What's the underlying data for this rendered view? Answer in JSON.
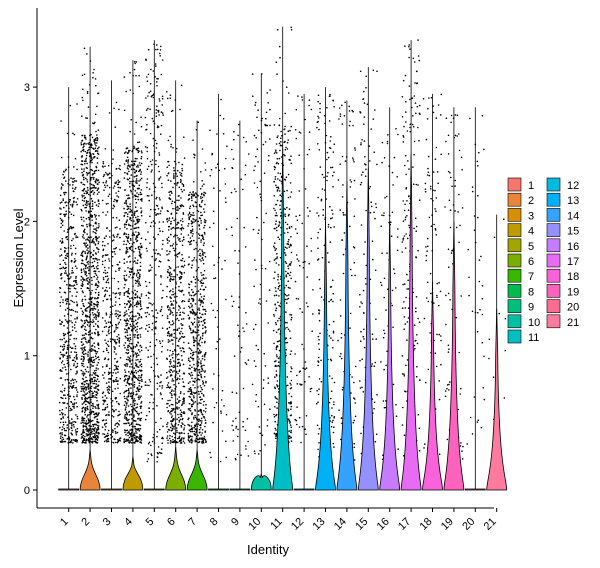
{
  "chart_data": {
    "type": "violin",
    "xlabel": "Identity",
    "ylabel": "Expression Level",
    "ylim": [
      -0.2,
      3.5
    ],
    "yticks": [
      0,
      1,
      2,
      3
    ],
    "categories": [
      "1",
      "2",
      "3",
      "4",
      "5",
      "6",
      "7",
      "8",
      "9",
      "10",
      "11",
      "12",
      "13",
      "14",
      "15",
      "16",
      "17",
      "18",
      "19",
      "20",
      "21"
    ],
    "colors": [
      "#F8766D",
      "#E8853A",
      "#D89000",
      "#C09B00",
      "#A3A500",
      "#7CAE00",
      "#39B600",
      "#00BB4E",
      "#00BF7D",
      "#00C1A3",
      "#00BFC4",
      "#00BAE0",
      "#00B0F6",
      "#35A2FF",
      "#9590FF",
      "#C77CFF",
      "#E76BF3",
      "#FA62DB",
      "#FF62BC",
      "#FF6C91",
      "#FF7A9D"
    ],
    "max_expression": [
      3.0,
      3.3,
      3.05,
      3.2,
      3.35,
      3.05,
      2.75,
      2.95,
      2.75,
      3.1,
      3.45,
      2.95,
      3.0,
      2.9,
      3.15,
      2.85,
      3.35,
      2.95,
      2.85,
      2.85,
      2.05
    ],
    "violin_height": [
      0.0,
      0.3,
      0.0,
      0.25,
      0.0,
      0.32,
      0.3,
      0.0,
      0.0,
      0.12,
      2.55,
      0.0,
      2.0,
      2.3,
      2.4,
      2.0,
      2.5,
      1.55,
      2.0,
      0.0,
      1.35
    ],
    "point_density": [
      520,
      1100,
      420,
      900,
      300,
      600,
      650,
      60,
      70,
      90,
      500,
      80,
      190,
      100,
      110,
      70,
      190,
      90,
      80,
      40,
      10
    ],
    "legend_position": "right",
    "grid": false
  }
}
